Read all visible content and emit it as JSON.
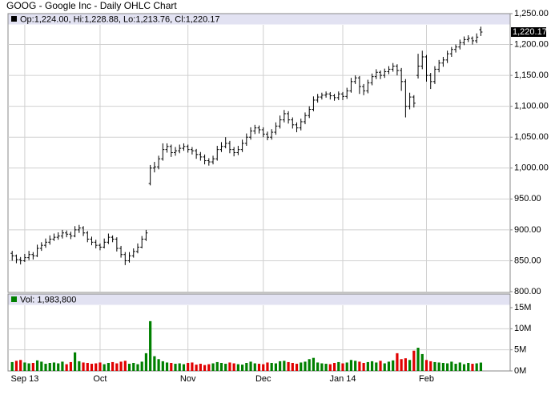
{
  "chart_data": {
    "type": "ohlc",
    "title": "GOOG - Google Inc - Daily OHLC Chart",
    "info": "Op:1,224.00, Hi:1,228.88, Lo:1,213.76, Cl:1,220.17",
    "last_price_label": "1,220.17",
    "color": "#000000",
    "up_color": "#008000",
    "down_color": "#e00000",
    "grid": true,
    "ylim": [
      800,
      1250
    ],
    "yticks": [
      {
        "value": 800,
        "label": "800.00"
      },
      {
        "value": 850,
        "label": "850.00"
      },
      {
        "value": 900,
        "label": "900.00"
      },
      {
        "value": 950,
        "label": "950.00"
      },
      {
        "value": 1000,
        "label": "1,000.00"
      },
      {
        "value": 1050,
        "label": "1,050.00"
      },
      {
        "value": 1100,
        "label": "1,100.00"
      },
      {
        "value": 1150,
        "label": "1,150.00"
      },
      {
        "value": 1200,
        "label": "1,200.00"
      },
      {
        "value": 1250,
        "label": "1,250.00"
      }
    ],
    "xlim": [
      -1,
      119
    ],
    "xticks": [
      {
        "value": 3,
        "label": "Sep 13"
      },
      {
        "value": 21,
        "label": "Oct"
      },
      {
        "value": 42,
        "label": "Nov"
      },
      {
        "value": 60,
        "label": "Dec"
      },
      {
        "value": 79,
        "label": "Jan 14"
      },
      {
        "value": 99,
        "label": "Feb"
      }
    ],
    "ohlc": [
      [
        862,
        866,
        850,
        858
      ],
      [
        858,
        860,
        846,
        852
      ],
      [
        852,
        856,
        844,
        850
      ],
      [
        850,
        861,
        848,
        855
      ],
      [
        855,
        866,
        851,
        860
      ],
      [
        860,
        864,
        852,
        858
      ],
      [
        858,
        876,
        856,
        870
      ],
      [
        870,
        880,
        866,
        875
      ],
      [
        875,
        886,
        871,
        880
      ],
      [
        880,
        891,
        876,
        885
      ],
      [
        885,
        894,
        882,
        888
      ],
      [
        888,
        896,
        884,
        890
      ],
      [
        890,
        900,
        886,
        895
      ],
      [
        895,
        899,
        888,
        893
      ],
      [
        893,
        897,
        885,
        890
      ],
      [
        890,
        906,
        888,
        900
      ],
      [
        900,
        908,
        895,
        903
      ],
      [
        903,
        906,
        890,
        895
      ],
      [
        895,
        898,
        880,
        885
      ],
      [
        885,
        889,
        875,
        880
      ],
      [
        880,
        884,
        870,
        875
      ],
      [
        875,
        878,
        867,
        872
      ],
      [
        872,
        886,
        870,
        880
      ],
      [
        880,
        894,
        877,
        888
      ],
      [
        888,
        891,
        880,
        885
      ],
      [
        885,
        888,
        865,
        870
      ],
      [
        870,
        874,
        855,
        860
      ],
      [
        860,
        864,
        843,
        850
      ],
      [
        850,
        864,
        847,
        858
      ],
      [
        858,
        870,
        855,
        865
      ],
      [
        865,
        878,
        862,
        872
      ],
      [
        872,
        890,
        870,
        885
      ],
      [
        885,
        900,
        882,
        895
      ],
      [
        975,
        1005,
        972,
        1000
      ],
      [
        1000,
        1010,
        993,
        1002
      ],
      [
        1002,
        1020,
        998,
        1015
      ],
      [
        1015,
        1040,
        1012,
        1030
      ],
      [
        1030,
        1040,
        1025,
        1035
      ],
      [
        1035,
        1038,
        1018,
        1025
      ],
      [
        1025,
        1034,
        1020,
        1028
      ],
      [
        1028,
        1038,
        1024,
        1032
      ],
      [
        1032,
        1040,
        1028,
        1035
      ],
      [
        1035,
        1038,
        1025,
        1030
      ],
      [
        1030,
        1034,
        1022,
        1028
      ],
      [
        1028,
        1031,
        1015,
        1022
      ],
      [
        1022,
        1026,
        1012,
        1018
      ],
      [
        1018,
        1022,
        1006,
        1012
      ],
      [
        1012,
        1016,
        1004,
        1010
      ],
      [
        1010,
        1020,
        1006,
        1015
      ],
      [
        1015,
        1036,
        1012,
        1030
      ],
      [
        1030,
        1042,
        1026,
        1035
      ],
      [
        1035,
        1050,
        1032,
        1040
      ],
      [
        1040,
        1044,
        1024,
        1030
      ],
      [
        1030,
        1034,
        1019,
        1025
      ],
      [
        1025,
        1036,
        1021,
        1030
      ],
      [
        1030,
        1046,
        1026,
        1040
      ],
      [
        1040,
        1056,
        1036,
        1050
      ],
      [
        1050,
        1066,
        1046,
        1060
      ],
      [
        1060,
        1070,
        1055,
        1065
      ],
      [
        1065,
        1069,
        1056,
        1062
      ],
      [
        1062,
        1066,
        1050,
        1055
      ],
      [
        1055,
        1059,
        1045,
        1050
      ],
      [
        1050,
        1063,
        1046,
        1058
      ],
      [
        1058,
        1074,
        1054,
        1068
      ],
      [
        1068,
        1085,
        1064,
        1078
      ],
      [
        1078,
        1094,
        1074,
        1088
      ],
      [
        1088,
        1092,
        1072,
        1078
      ],
      [
        1078,
        1082,
        1064,
        1070
      ],
      [
        1070,
        1074,
        1058,
        1065
      ],
      [
        1065,
        1080,
        1061,
        1075
      ],
      [
        1075,
        1090,
        1071,
        1085
      ],
      [
        1085,
        1100,
        1081,
        1095
      ],
      [
        1095,
        1116,
        1092,
        1110
      ],
      [
        1110,
        1120,
        1106,
        1115
      ],
      [
        1115,
        1122,
        1111,
        1118
      ],
      [
        1118,
        1124,
        1114,
        1120
      ],
      [
        1120,
        1123,
        1111,
        1117
      ],
      [
        1117,
        1120,
        1109,
        1114
      ],
      [
        1114,
        1124,
        1110,
        1120
      ],
      [
        1120,
        1123,
        1110,
        1116
      ],
      [
        1116,
        1130,
        1112,
        1125
      ],
      [
        1125,
        1146,
        1122,
        1140
      ],
      [
        1140,
        1150,
        1136,
        1146
      ],
      [
        1146,
        1149,
        1120,
        1132
      ],
      [
        1132,
        1136,
        1118,
        1125
      ],
      [
        1125,
        1143,
        1121,
        1138
      ],
      [
        1138,
        1153,
        1134,
        1148
      ],
      [
        1148,
        1160,
        1144,
        1155
      ],
      [
        1155,
        1158,
        1144,
        1150
      ],
      [
        1150,
        1161,
        1146,
        1156
      ],
      [
        1156,
        1165,
        1152,
        1160
      ],
      [
        1160,
        1170,
        1156,
        1165
      ],
      [
        1165,
        1168,
        1150,
        1158
      ],
      [
        1158,
        1162,
        1125,
        1140
      ],
      [
        1140,
        1144,
        1082,
        1100
      ],
      [
        1100,
        1122,
        1095,
        1115
      ],
      [
        1115,
        1118,
        1098,
        1105
      ],
      [
        1150,
        1185,
        1145,
        1165
      ],
      [
        1165,
        1190,
        1160,
        1180
      ],
      [
        1180,
        1183,
        1140,
        1150
      ],
      [
        1150,
        1154,
        1128,
        1140
      ],
      [
        1140,
        1165,
        1136,
        1160
      ],
      [
        1160,
        1175,
        1155,
        1170
      ],
      [
        1170,
        1180,
        1164,
        1175
      ],
      [
        1175,
        1190,
        1170,
        1185
      ],
      [
        1185,
        1196,
        1180,
        1192
      ],
      [
        1192,
        1200,
        1187,
        1196
      ],
      [
        1196,
        1208,
        1192,
        1203
      ],
      [
        1203,
        1213,
        1199,
        1208
      ],
      [
        1208,
        1215,
        1204,
        1210
      ],
      [
        1210,
        1213,
        1200,
        1206
      ],
      [
        1206,
        1218,
        1202,
        1212
      ],
      [
        1224,
        1228.88,
        1213.76,
        1220.17
      ]
    ],
    "volume": {
      "label": "Vol: 1,983,800",
      "ylim": [
        0,
        15
      ],
      "yticks": [
        {
          "value": 0,
          "label": "0M"
        },
        {
          "value": 5,
          "label": "5M"
        },
        {
          "value": 10,
          "label": "10M"
        },
        {
          "value": 15,
          "label": "15M"
        }
      ],
      "values": [
        2.1,
        2.4,
        2.6,
        2.0,
        1.8,
        1.9,
        2.5,
        2.2,
        1.7,
        1.9,
        2.0,
        1.8,
        2.2,
        1.6,
        2.1,
        4.4,
        2.3,
        2.0,
        1.9,
        1.7,
        1.8,
        2.0,
        1.6,
        1.9,
        2.1,
        1.8,
        2.2,
        2.4,
        1.7,
        1.9,
        1.6,
        2.2,
        4.2,
        11.8,
        3.5,
        2.8,
        2.3,
        2.0,
        1.9,
        1.7,
        1.8,
        1.6,
        1.9,
        2.0,
        1.5,
        1.7,
        1.4,
        1.6,
        1.8,
        2.1,
        1.9,
        1.7,
        2.0,
        1.8,
        1.6,
        1.5,
        1.9,
        2.2,
        1.8,
        1.7,
        1.6,
        2.0,
        1.9,
        1.8,
        2.3,
        2.4,
        2.1,
        1.9,
        1.7,
        2.0,
        2.2,
        2.8,
        3.1,
        2.0,
        1.8,
        1.7,
        1.6,
        1.9,
        2.1,
        1.8,
        2.0,
        2.6,
        2.4,
        2.2,
        1.9,
        2.1,
        2.3,
        2.0,
        2.4,
        1.8,
        2.2,
        2.5,
        4.2,
        2.8,
        3.0,
        2.6,
        4.8,
        5.5,
        4.0,
        2.6,
        2.3,
        2.1,
        2.0,
        1.9,
        1.8,
        2.2,
        1.7,
        2.0,
        1.6,
        1.9,
        1.7,
        1.8,
        1.9838
      ]
    }
  }
}
